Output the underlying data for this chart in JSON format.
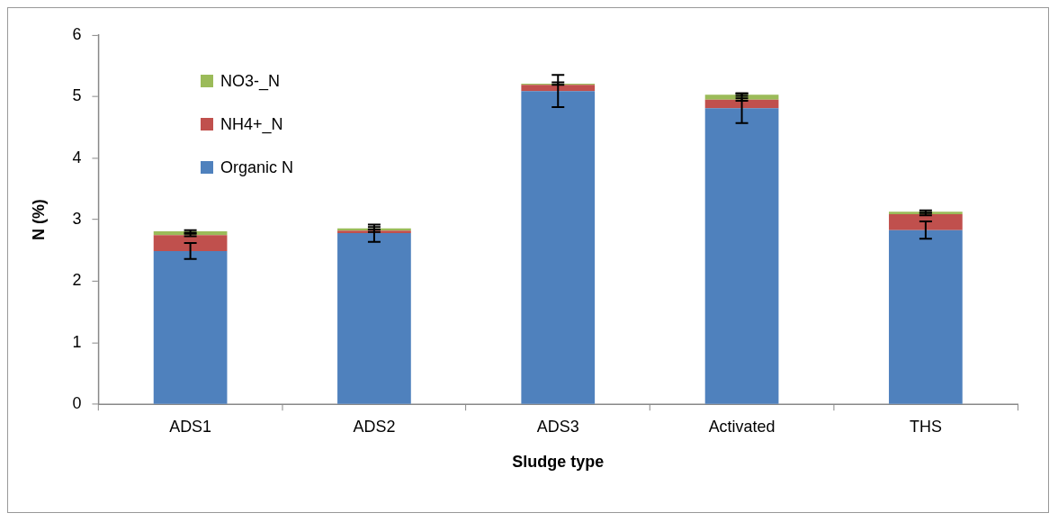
{
  "chart_data": {
    "type": "bar",
    "stacked": true,
    "xlabel": "Sludge type",
    "ylabel": "N (%)",
    "categories": [
      "ADS1",
      "ADS2",
      "ADS3",
      "Activated",
      "THS"
    ],
    "series": [
      {
        "name": "Organic N",
        "color": "#4f81bd",
        "values": [
          2.49,
          2.78,
          5.09,
          4.81,
          2.83
        ],
        "errors": [
          0.13,
          0.14,
          0.26,
          0.24,
          0.14
        ]
      },
      {
        "name": "NH4+_N",
        "color": "#c0504d",
        "values": [
          0.26,
          0.04,
          0.1,
          0.14,
          0.26
        ],
        "errors": [
          0.02,
          0.02,
          null,
          0.02,
          0.02
        ]
      },
      {
        "name": "NO3-_N",
        "color": "#9bbb59",
        "values": [
          0.06,
          0.04,
          0.02,
          0.08,
          0.04
        ],
        "errors": [
          0.02,
          0.02,
          0.02,
          0.02,
          0.02
        ]
      }
    ],
    "ylim": [
      0,
      6
    ],
    "yticks": [
      0,
      1,
      2,
      3,
      4,
      5,
      6
    ],
    "grid": false,
    "legend": "top left"
  }
}
